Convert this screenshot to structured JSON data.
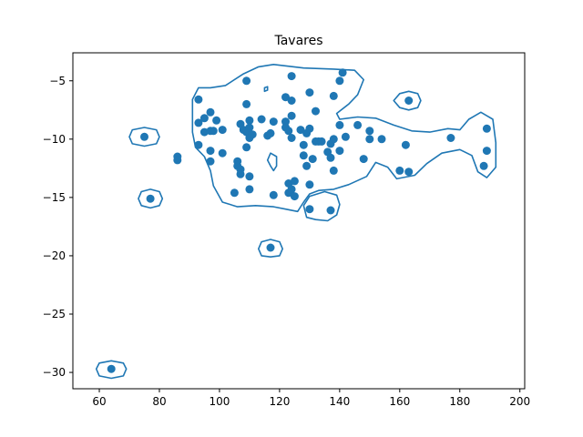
{
  "chart_data": {
    "type": "scatter",
    "title": "Tavares",
    "xlabel": "",
    "ylabel": "",
    "xlim": [
      51.2,
      201.6
    ],
    "ylim": [
      -31.4,
      -2.6
    ],
    "x_ticks": [
      60,
      80,
      100,
      120,
      140,
      160,
      180,
      200
    ],
    "y_ticks": [
      -5,
      -10,
      -15,
      -20,
      -25,
      -30
    ],
    "x_tick_labels": [
      "60",
      "80",
      "100",
      "120",
      "140",
      "160",
      "180",
      "200"
    ],
    "y_tick_labels": [
      "−5",
      "−10",
      "−15",
      "−20",
      "−25",
      "−30"
    ],
    "grid": false,
    "legend": "none",
    "color": "#1f77b4",
    "points": [
      [
        64,
        -29.7
      ],
      [
        75,
        -9.8
      ],
      [
        77,
        -15.1
      ],
      [
        86,
        -11.5
      ],
      [
        86,
        -11.8
      ],
      [
        93,
        -6.6
      ],
      [
        93,
        -8.6
      ],
      [
        93,
        -10.5
      ],
      [
        95,
        -9.4
      ],
      [
        95,
        -8.2
      ],
      [
        97,
        -7.7
      ],
      [
        97,
        -9.3
      ],
      [
        97,
        -11.0
      ],
      [
        97,
        -11.9
      ],
      [
        98,
        -9.3
      ],
      [
        99,
        -8.4
      ],
      [
        101,
        -9.2
      ],
      [
        101,
        -11.2
      ],
      [
        105,
        -14.6
      ],
      [
        106,
        -11.9
      ],
      [
        106,
        -12.3
      ],
      [
        107,
        -12.6
      ],
      [
        107,
        -8.7
      ],
      [
        107,
        -13.0
      ],
      [
        108,
        -9.2
      ],
      [
        109,
        -5.0
      ],
      [
        109,
        -7.0
      ],
      [
        109,
        -9.4
      ],
      [
        109,
        -10.7
      ],
      [
        110,
        -8.4
      ],
      [
        110,
        -9.0
      ],
      [
        110,
        -9.9
      ],
      [
        110,
        -13.2
      ],
      [
        110,
        -14.3
      ],
      [
        111,
        -9.6
      ],
      [
        114,
        -8.3
      ],
      [
        116,
        -9.7
      ],
      [
        117,
        -9.5
      ],
      [
        117,
        -19.3
      ],
      [
        118,
        -8.5
      ],
      [
        118,
        -14.8
      ],
      [
        122,
        -6.4
      ],
      [
        122,
        -8.5
      ],
      [
        122,
        -9.0
      ],
      [
        123,
        -9.3
      ],
      [
        123,
        -13.8
      ],
      [
        123,
        -14.6
      ],
      [
        124,
        -4.6
      ],
      [
        124,
        -6.7
      ],
      [
        124,
        -8.0
      ],
      [
        124,
        -9.9
      ],
      [
        124,
        -14.3
      ],
      [
        125,
        -13.6
      ],
      [
        125,
        -14.9
      ],
      [
        127,
        -9.2
      ],
      [
        128,
        -10.5
      ],
      [
        128,
        -11.4
      ],
      [
        129,
        -9.5
      ],
      [
        129,
        -12.3
      ],
      [
        130,
        -6.0
      ],
      [
        130,
        -9.1
      ],
      [
        130,
        -13.9
      ],
      [
        130,
        -16.0
      ],
      [
        131,
        -11.7
      ],
      [
        132,
        -7.6
      ],
      [
        132,
        -10.2
      ],
      [
        133,
        -10.2
      ],
      [
        134,
        -10.2
      ],
      [
        136,
        -11.1
      ],
      [
        137,
        -10.4
      ],
      [
        137,
        -11.6
      ],
      [
        137,
        -16.1
      ],
      [
        138,
        -6.3
      ],
      [
        138,
        -10.0
      ],
      [
        138,
        -12.7
      ],
      [
        140,
        -5.0
      ],
      [
        140,
        -8.8
      ],
      [
        140,
        -11.0
      ],
      [
        141,
        -4.3
      ],
      [
        142,
        -9.8
      ],
      [
        146,
        -8.8
      ],
      [
        148,
        -11.7
      ],
      [
        150,
        -9.3
      ],
      [
        150,
        -10.0
      ],
      [
        154,
        -10.0
      ],
      [
        160,
        -12.7
      ],
      [
        162,
        -10.5
      ],
      [
        163,
        -12.8
      ],
      [
        163,
        -6.7
      ],
      [
        177,
        -9.9
      ],
      [
        188,
        -12.3
      ],
      [
        189,
        -9.1
      ],
      [
        189,
        -11.0
      ]
    ],
    "contours": [
      [
        [
          118,
          -3.6
        ],
        [
          128,
          -3.9
        ],
        [
          138,
          -4.0
        ],
        [
          145,
          -4.1
        ],
        [
          148,
          -4.9
        ],
        [
          146,
          -6.2
        ],
        [
          143,
          -7.0
        ],
        [
          139,
          -7.8
        ],
        [
          140,
          -8.3
        ],
        [
          146,
          -8.1
        ],
        [
          152,
          -8.2
        ],
        [
          158,
          -8.8
        ],
        [
          164,
          -9.3
        ],
        [
          170,
          -9.4
        ],
        [
          176,
          -9.1
        ],
        [
          180,
          -9.2
        ],
        [
          183,
          -8.3
        ],
        [
          187,
          -7.7
        ],
        [
          191,
          -8.3
        ],
        [
          192,
          -10.3
        ],
        [
          192,
          -12.4
        ],
        [
          189,
          -13.3
        ],
        [
          186,
          -12.8
        ],
        [
          184,
          -11.4
        ],
        [
          180,
          -10.9
        ],
        [
          174,
          -11.2
        ],
        [
          169,
          -12.1
        ],
        [
          165,
          -13.1
        ],
        [
          159,
          -13.4
        ],
        [
          156,
          -12.4
        ],
        [
          152,
          -12.0
        ],
        [
          149,
          -13.2
        ],
        [
          143,
          -13.9
        ],
        [
          138,
          -14.3
        ],
        [
          133,
          -14.4
        ],
        [
          130,
          -14.7
        ],
        [
          128,
          -15.4
        ],
        [
          126,
          -16.2
        ],
        [
          122,
          -16.0
        ],
        [
          118,
          -15.8
        ],
        [
          112,
          -15.7
        ],
        [
          106,
          -15.8
        ],
        [
          101,
          -15.4
        ],
        [
          98,
          -14.0
        ],
        [
          97,
          -12.7
        ],
        [
          95,
          -11.5
        ],
        [
          92,
          -10.7
        ],
        [
          91,
          -9.4
        ],
        [
          91,
          -8.0
        ],
        [
          91,
          -6.6
        ],
        [
          93,
          -5.6
        ],
        [
          97,
          -5.6
        ],
        [
          102,
          -5.4
        ],
        [
          108,
          -4.4
        ],
        [
          113,
          -3.8
        ],
        [
          118,
          -3.6
        ]
      ],
      [
        [
          135,
          -14.5
        ],
        [
          139,
          -14.8
        ],
        [
          140,
          -15.6
        ],
        [
          139,
          -16.5
        ],
        [
          136,
          -17.0
        ],
        [
          132,
          -16.9
        ],
        [
          129,
          -16.7
        ],
        [
          128,
          -15.7
        ],
        [
          130,
          -14.9
        ],
        [
          135,
          -14.5
        ]
      ],
      [
        [
          117,
          -11.2
        ],
        [
          119,
          -11.5
        ],
        [
          119,
          -12.3
        ],
        [
          118,
          -12.7
        ],
        [
          117,
          -12.3
        ],
        [
          116,
          -11.8
        ],
        [
          117,
          -11.2
        ]
      ],
      [
        [
          115,
          -5.6
        ],
        [
          116,
          -5.5
        ],
        [
          116,
          -5.8
        ],
        [
          115,
          -5.9
        ],
        [
          115,
          -5.6
        ]
      ],
      [
        [
          163,
          -5.9
        ],
        [
          166,
          -6.1
        ],
        [
          167,
          -6.7
        ],
        [
          166,
          -7.3
        ],
        [
          163,
          -7.5
        ],
        [
          160,
          -7.3
        ],
        [
          158,
          -6.7
        ],
        [
          160,
          -6.1
        ],
        [
          163,
          -5.9
        ]
      ],
      [
        [
          75,
          -9.0
        ],
        [
          79,
          -9.2
        ],
        [
          80,
          -9.8
        ],
        [
          79,
          -10.4
        ],
        [
          75,
          -10.6
        ],
        [
          71,
          -10.4
        ],
        [
          70,
          -9.8
        ],
        [
          71,
          -9.2
        ],
        [
          75,
          -9.0
        ]
      ],
      [
        [
          77,
          -14.3
        ],
        [
          80,
          -14.5
        ],
        [
          81,
          -15.1
        ],
        [
          80,
          -15.7
        ],
        [
          77,
          -15.9
        ],
        [
          74,
          -15.7
        ],
        [
          73,
          -15.1
        ],
        [
          74,
          -14.5
        ],
        [
          77,
          -14.3
        ]
      ],
      [
        [
          117,
          -18.6
        ],
        [
          120,
          -18.8
        ],
        [
          121,
          -19.4
        ],
        [
          120,
          -20.0
        ],
        [
          117,
          -20.1
        ],
        [
          114,
          -20.0
        ],
        [
          113,
          -19.4
        ],
        [
          114,
          -18.8
        ],
        [
          117,
          -18.6
        ]
      ],
      [
        [
          64,
          -29.0
        ],
        [
          68,
          -29.2
        ],
        [
          69,
          -29.7
        ],
        [
          68,
          -30.3
        ],
        [
          64,
          -30.5
        ],
        [
          60,
          -30.3
        ],
        [
          59,
          -29.7
        ],
        [
          60,
          -29.2
        ],
        [
          64,
          -29.0
        ]
      ]
    ]
  }
}
